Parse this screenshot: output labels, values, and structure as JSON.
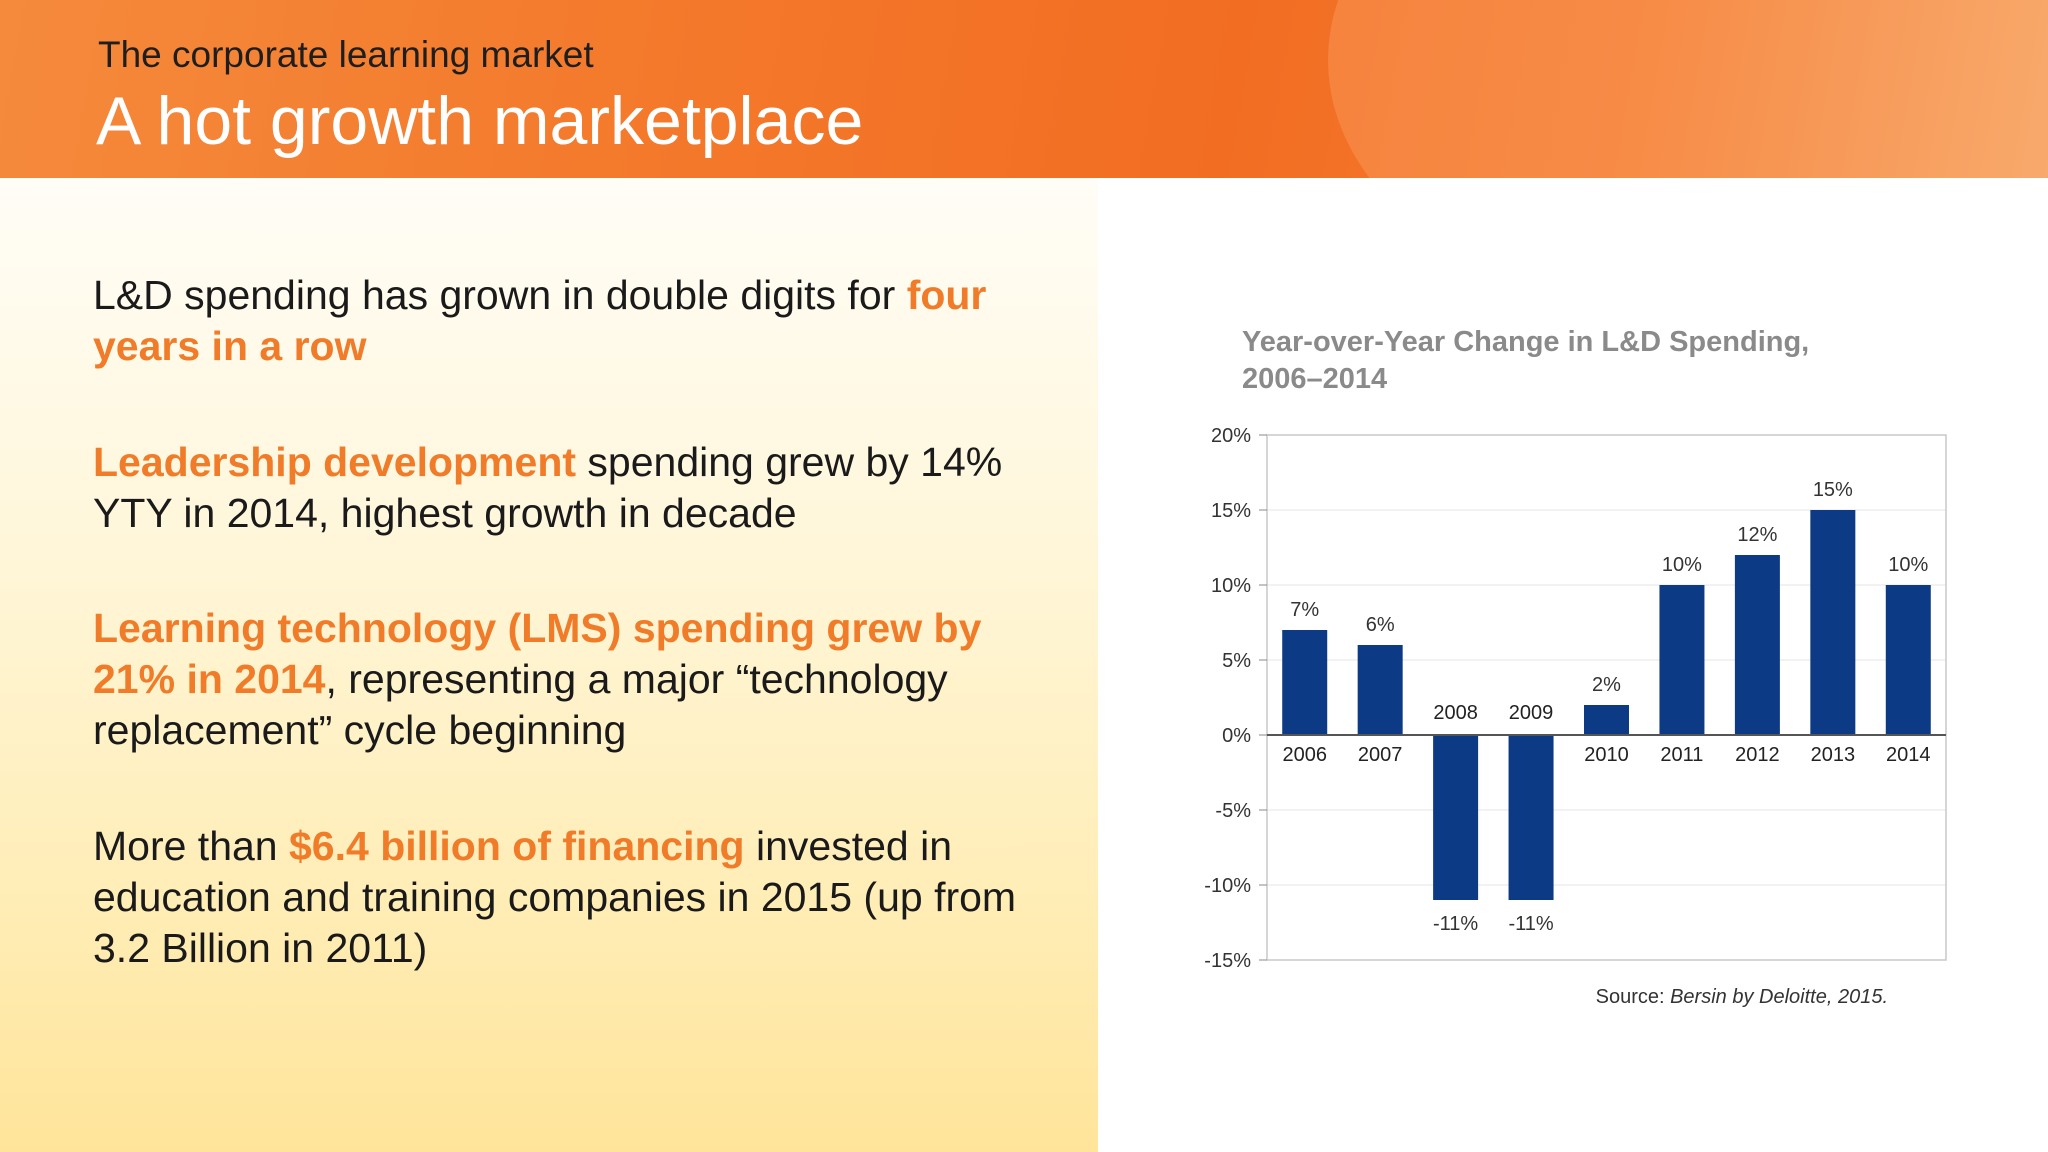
{
  "header": {
    "subtitle": "The corporate learning market",
    "title": "A hot growth marketplace"
  },
  "bullets": [
    {
      "parts": [
        {
          "text": "L&D spending has grown in double digits for ",
          "highlight": false
        },
        {
          "text": "four years in a row",
          "highlight": true
        }
      ]
    },
    {
      "parts": [
        {
          "text": "Leadership development",
          "highlight": true
        },
        {
          "text": " spending grew by 14% YTY in 2014, highest growth in decade",
          "highlight": false
        }
      ]
    },
    {
      "parts": [
        {
          "text": "Learning technology (LMS) spending grew by 21% in 2014",
          "highlight": true
        },
        {
          "text": ", representing a major “technology replacement” cycle beginning",
          "highlight": false
        }
      ]
    },
    {
      "parts": [
        {
          "text": "More than ",
          "highlight": false
        },
        {
          "text": "$6.4 billion of financing",
          "highlight": true
        },
        {
          "text": " invested in education and training companies in 2015 (up from 3.2 Billion in 2011)",
          "highlight": false
        }
      ]
    }
  ],
  "colors": {
    "accent": "#f07c2a",
    "bar": "#0c3a85",
    "chart_title": "#8a8a8a"
  },
  "chart_data": {
    "type": "bar",
    "title_lines": [
      "Year-over-Year Change in L&D Spending,",
      "2006–2014"
    ],
    "categories": [
      "2006",
      "2007",
      "2008",
      "2009",
      "2010",
      "2011",
      "2012",
      "2013",
      "2014"
    ],
    "values": [
      7,
      6,
      -11,
      -11,
      2,
      10,
      12,
      15,
      10
    ],
    "data_labels": [
      "7%",
      "6%",
      "-11%",
      "-11%",
      "2%",
      "10%",
      "12%",
      "15%",
      "10%"
    ],
    "y_ticks": [
      20,
      15,
      10,
      5,
      0,
      -5,
      -10,
      -15
    ],
    "y_tick_labels": [
      "20%",
      "15%",
      "10%",
      "5%",
      "0%",
      "-5%",
      "-10%",
      "-15%"
    ],
    "ylim": [
      -15,
      20
    ],
    "grid": true,
    "legend": "none",
    "source_prefix": "Source: ",
    "source_italic": "Bersin by Deloitte, 2015."
  }
}
